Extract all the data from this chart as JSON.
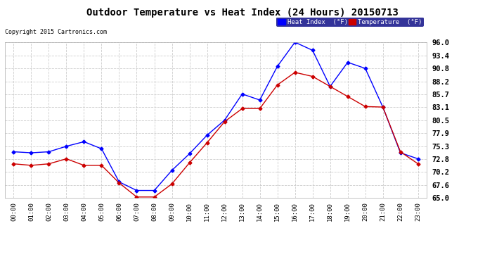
{
  "title": "Outdoor Temperature vs Heat Index (24 Hours) 20150713",
  "copyright": "Copyright 2015 Cartronics.com",
  "background_color": "#ffffff",
  "plot_bg_color": "#ffffff",
  "grid_color": "#cccccc",
  "hours": [
    0,
    1,
    2,
    3,
    4,
    5,
    6,
    7,
    8,
    9,
    10,
    11,
    12,
    13,
    14,
    15,
    16,
    17,
    18,
    19,
    20,
    21,
    22,
    23
  ],
  "heat_index": [
    74.2,
    74.0,
    74.2,
    75.3,
    76.2,
    74.8,
    68.2,
    66.5,
    66.5,
    70.5,
    73.8,
    77.5,
    80.5,
    85.7,
    84.5,
    91.2,
    96.0,
    94.4,
    87.2,
    92.0,
    90.8,
    83.1,
    74.0,
    72.8
  ],
  "temperature": [
    71.8,
    71.5,
    71.8,
    72.8,
    71.5,
    71.5,
    68.0,
    65.2,
    65.2,
    67.8,
    72.0,
    76.0,
    80.2,
    82.8,
    82.8,
    87.5,
    90.0,
    89.2,
    87.2,
    85.2,
    83.2,
    83.1,
    74.2,
    71.8
  ],
  "ylim_min": 65.0,
  "ylim_max": 96.0,
  "yticks": [
    65.0,
    67.6,
    70.2,
    72.8,
    75.3,
    77.9,
    80.5,
    83.1,
    85.7,
    88.2,
    90.8,
    93.4,
    96.0
  ],
  "heat_index_color": "#0000ff",
  "temperature_color": "#cc0000",
  "heat_index_label": "Heat Index  (°F)",
  "temperature_label": "Temperature  (°F)",
  "legend_bg_color": "#000080",
  "marker": "D",
  "marker_size": 2.5,
  "line_width": 1.0
}
